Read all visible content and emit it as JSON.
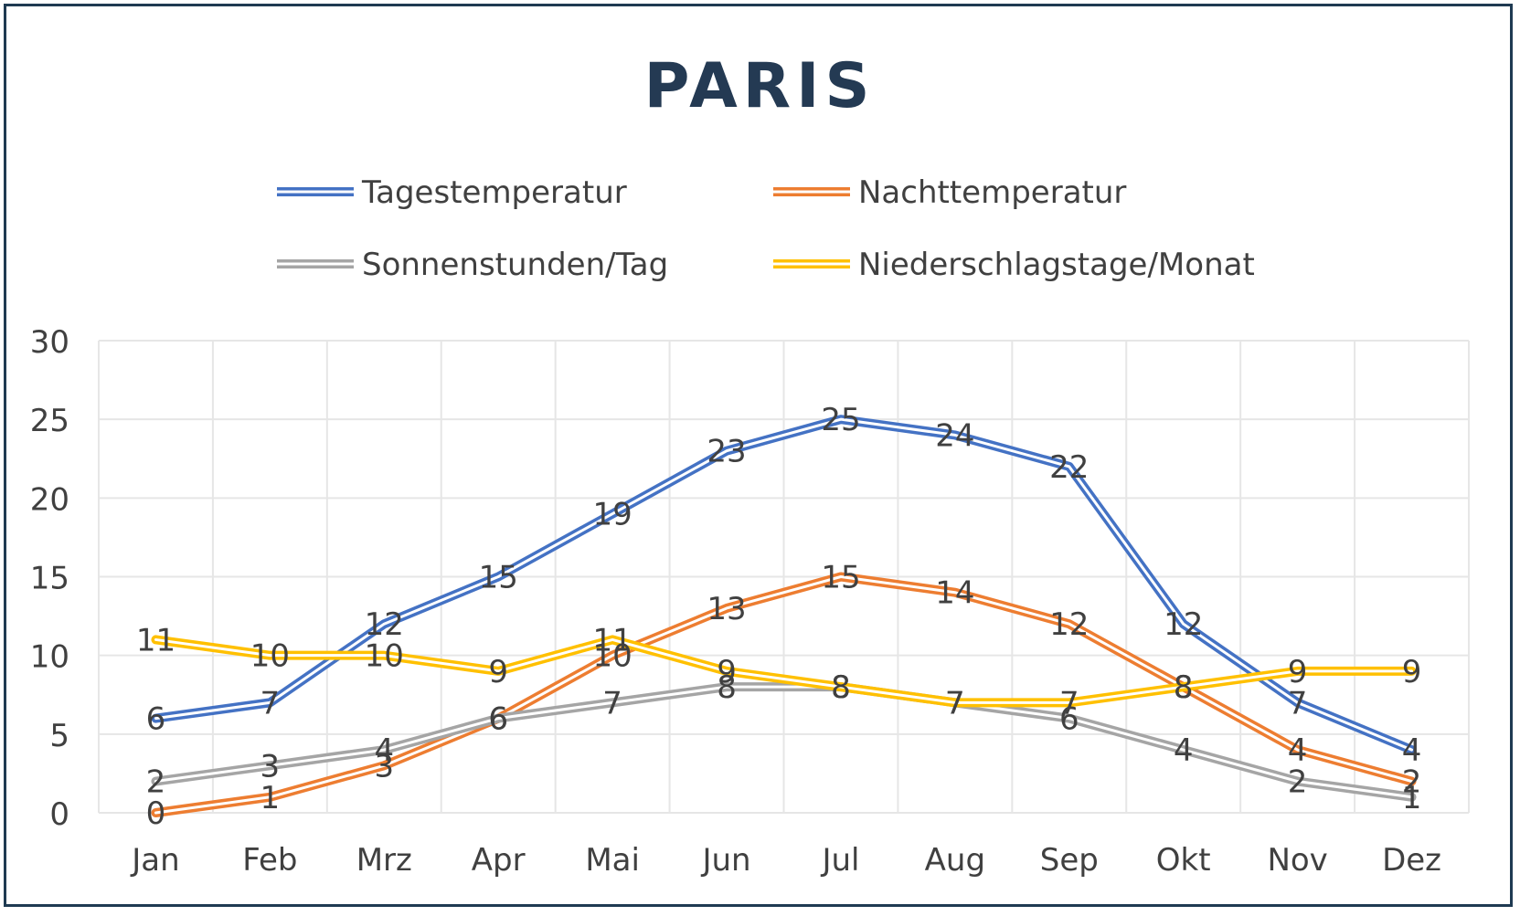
{
  "chart_data": {
    "type": "line",
    "title": "PARIS",
    "xlabel": "",
    "ylabel": "",
    "categories": [
      "Jan",
      "Feb",
      "Mrz",
      "Apr",
      "Mai",
      "Jun",
      "Jul",
      "Aug",
      "Sep",
      "Okt",
      "Nov",
      "Dez"
    ],
    "ylim": [
      0,
      30
    ],
    "yticks": [
      "0",
      "5",
      "10",
      "15",
      "20",
      "25",
      "30"
    ],
    "grid": true,
    "legend_position": "top",
    "series": [
      {
        "name": "Tagestemperatur",
        "color": "#4472c4",
        "values": [
          6,
          7,
          12,
          15,
          19,
          23,
          25,
          24,
          22,
          12,
          7,
          4
        ],
        "labels": [
          "6",
          "7",
          "12",
          "15",
          "19",
          "23",
          "25",
          "24",
          "22",
          "12",
          "7",
          "4"
        ]
      },
      {
        "name": "Nachttemperatur",
        "color": "#ed7d31",
        "values": [
          0,
          1,
          3,
          6,
          10,
          13,
          15,
          14,
          12,
          8,
          4,
          2
        ],
        "labels": [
          "0",
          "1",
          "3",
          "6",
          "10",
          "13",
          "15",
          "14",
          "12",
          "8",
          "4",
          "2"
        ]
      },
      {
        "name": "Sonnenstunden/Tag",
        "color": "#a5a5a5",
        "values": [
          2,
          3,
          4,
          6,
          7,
          8,
          8,
          7,
          6,
          4,
          2,
          1
        ],
        "labels": [
          "2",
          "3",
          "4",
          "6",
          "7",
          "8",
          "8",
          "7",
          "6",
          "4",
          "2",
          "1"
        ]
      },
      {
        "name": "Niederschlagstage/Monat",
        "color": "#ffc000",
        "values": [
          11,
          10,
          10,
          9,
          11,
          9,
          8,
          7,
          7,
          8,
          9,
          9
        ],
        "labels": [
          "11",
          "10",
          "10",
          "9",
          "11",
          "9",
          "8",
          "7",
          "7",
          "8",
          "9",
          "9"
        ]
      }
    ]
  }
}
